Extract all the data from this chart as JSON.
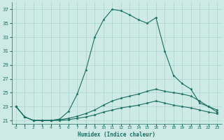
{
  "xlabel": "Humidex (Indice chaleur)",
  "xlim": [
    -0.5,
    23.5
  ],
  "ylim": [
    20.5,
    38
  ],
  "yticks": [
    21,
    23,
    25,
    27,
    29,
    31,
    33,
    35,
    37
  ],
  "xticks": [
    0,
    1,
    2,
    3,
    4,
    5,
    6,
    7,
    8,
    9,
    10,
    11,
    12,
    13,
    14,
    15,
    16,
    17,
    18,
    19,
    20,
    21,
    22,
    23
  ],
  "bg_color": "#cdeae4",
  "grid_color": "#aad4cc",
  "line_color": "#1a6e62",
  "line1_y": [
    23.0,
    21.5,
    21.0,
    21.0,
    21.0,
    21.2,
    22.3,
    24.8,
    28.3,
    33.0,
    35.5,
    37.0,
    36.8,
    36.2,
    35.5,
    35.0,
    35.8,
    31.0,
    27.5,
    26.3,
    25.5,
    23.5,
    23.0,
    22.5
  ],
  "line2_y": [
    23.0,
    21.5,
    21.0,
    21.0,
    21.0,
    21.1,
    21.3,
    21.6,
    22.0,
    22.5,
    23.2,
    23.8,
    24.2,
    24.5,
    24.8,
    25.2,
    25.5,
    25.2,
    25.0,
    24.8,
    24.5,
    23.8,
    23.0,
    22.2
  ],
  "line3_y": [
    23.0,
    21.5,
    21.0,
    21.0,
    21.0,
    21.0,
    21.1,
    21.3,
    21.5,
    21.8,
    22.2,
    22.5,
    22.8,
    23.0,
    23.2,
    23.5,
    23.8,
    23.5,
    23.2,
    23.0,
    22.8,
    22.5,
    22.2,
    22.0
  ]
}
